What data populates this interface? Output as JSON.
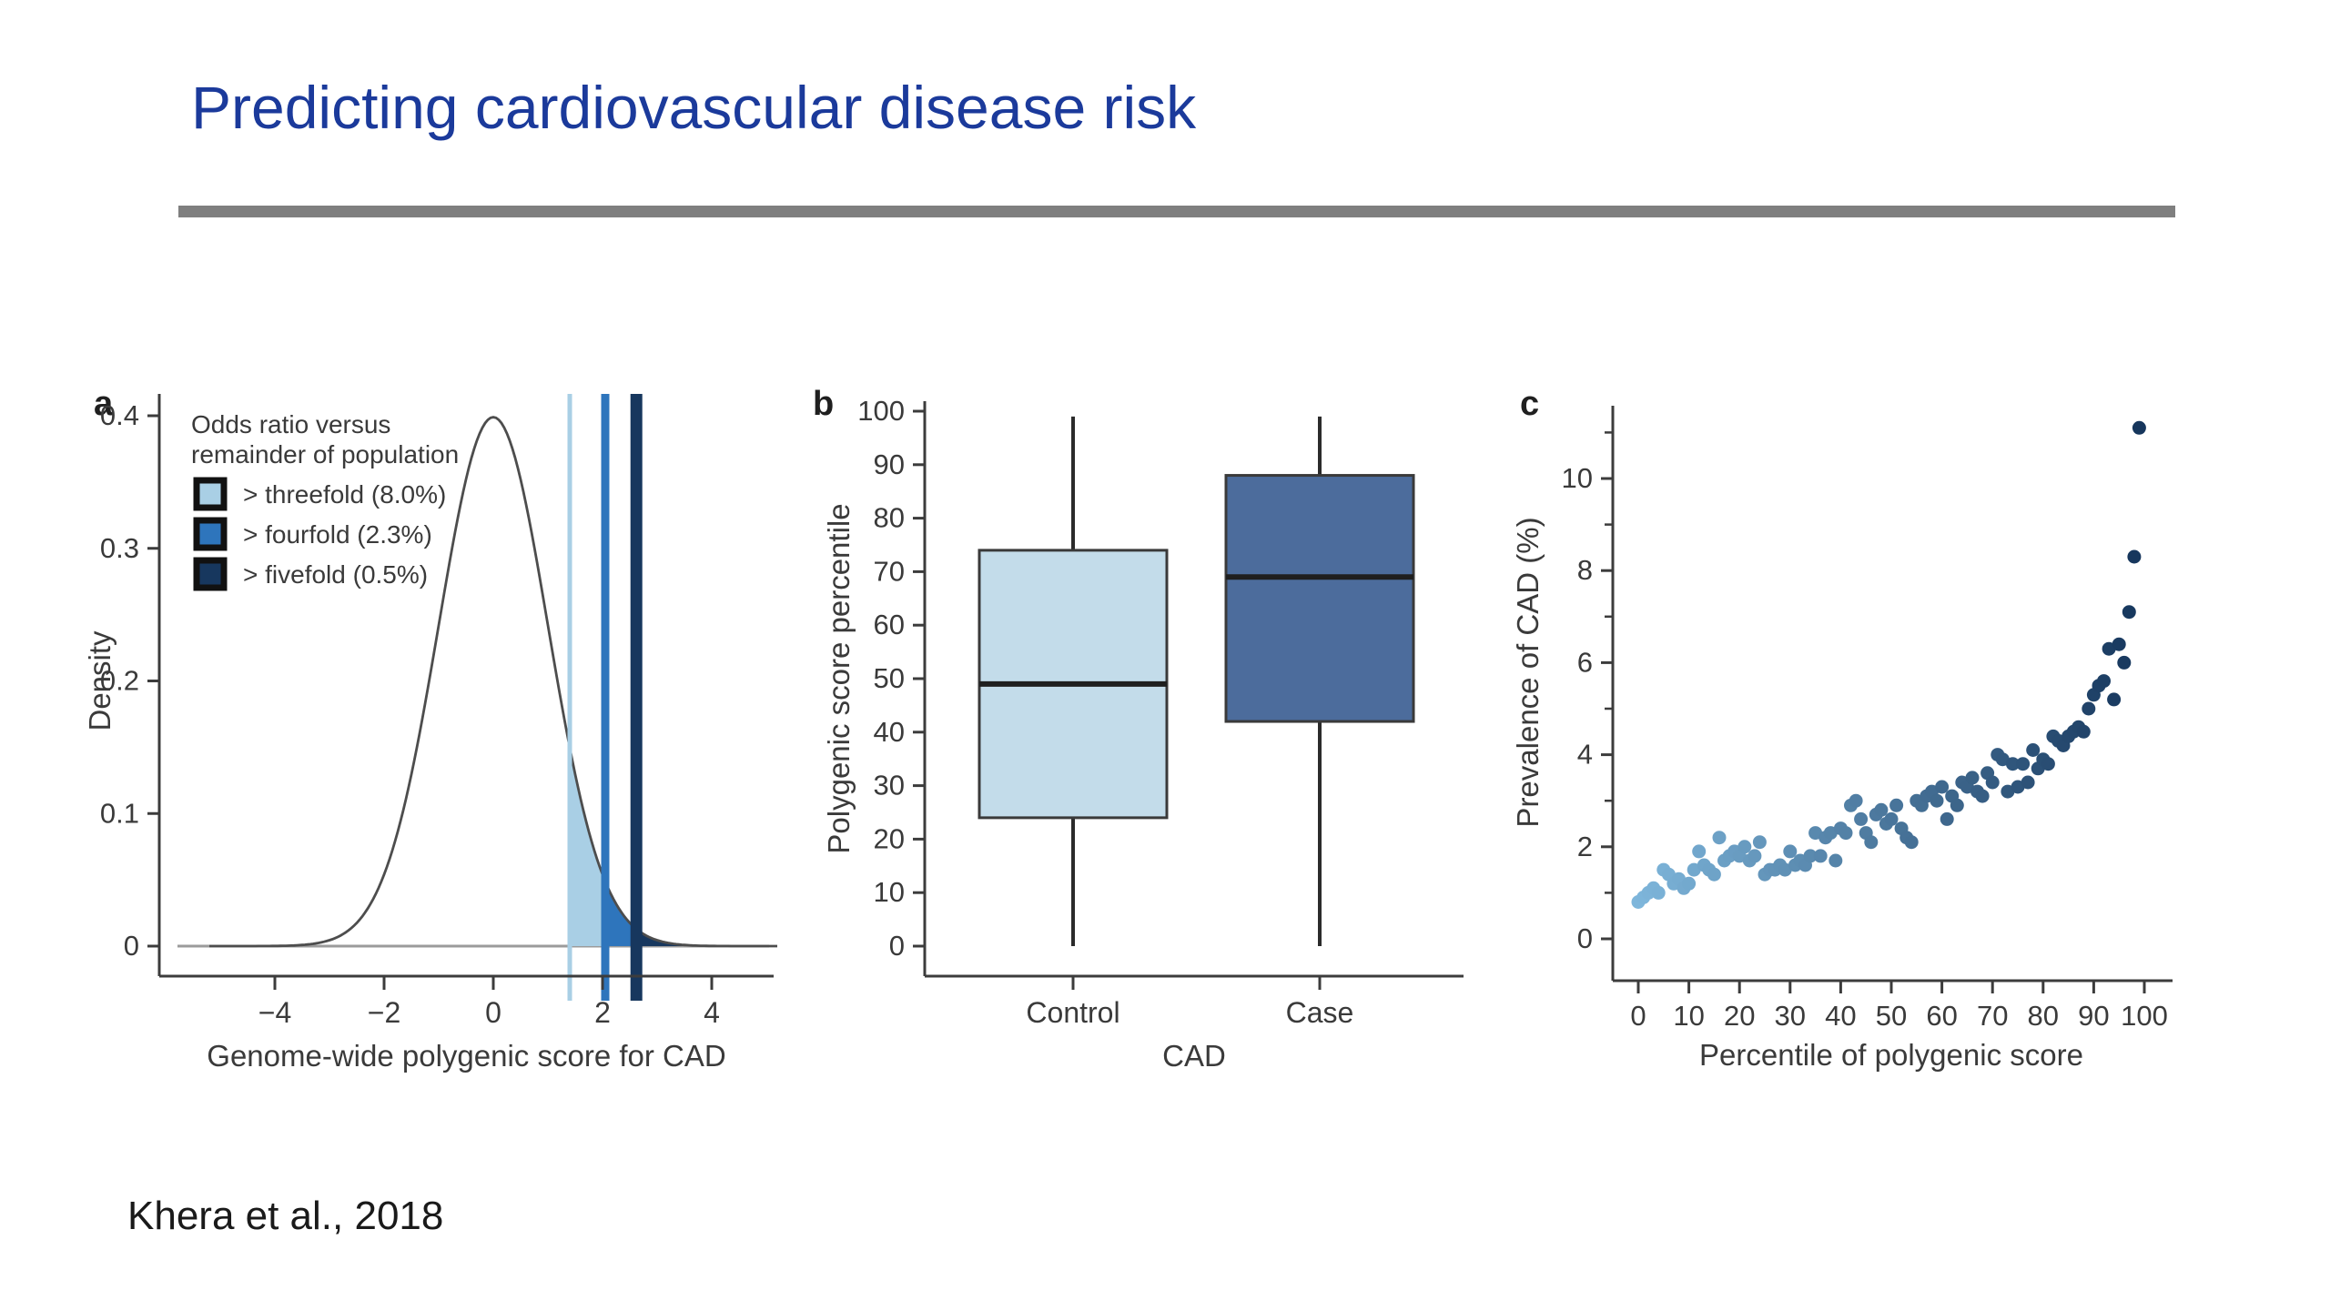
{
  "slide": {
    "title": "Predicting cardiovascular disease risk",
    "title_color": "#1b3a9b",
    "divider_color": "#7f7f7f",
    "background": "#ffffff",
    "citation": "Khera et al., 2018"
  },
  "chart_data": [
    {
      "panel_label": "a",
      "type": "area",
      "xlabel": "Genome-wide polygenic score for CAD",
      "ylabel": "Density",
      "xlim": [
        -5.5,
        5.3
      ],
      "ylim": [
        0,
        0.42
      ],
      "xticks": [
        -4,
        -2,
        0,
        2,
        4
      ],
      "yticks": [
        0,
        0.1,
        0.2,
        0.3,
        0.4
      ],
      "distribution": {
        "shape": "normal",
        "mean": 0,
        "sd": 1,
        "peak_density": 0.4
      },
      "curve_color": "#4d4d4d",
      "baseline_color": "#9b9b9b",
      "legend_title_lines": [
        "Odds ratio versus",
        "remainder of population"
      ],
      "legend_items": [
        {
          "label": "> threefold (8.0%)",
          "color": "#a9cfe5",
          "threshold": 1.4
        },
        {
          "label": "> fourfold (2.3%)",
          "color": "#2e75bc",
          "threshold": 2.05
        },
        {
          "label": "> fivefold (0.5%)",
          "color": "#17375e",
          "threshold": 2.62
        }
      ]
    },
    {
      "panel_label": "b",
      "type": "box",
      "xlabel": "CAD",
      "ylabel": "Polygenic score percentile",
      "ylim": [
        0,
        103
      ],
      "yticks": [
        0,
        10,
        20,
        30,
        40,
        50,
        60,
        70,
        80,
        90,
        100
      ],
      "categories": [
        "Control",
        "Case"
      ],
      "boxes": [
        {
          "category": "Control",
          "whisker_low": 0,
          "q1": 24,
          "median": 49,
          "q3": 74,
          "whisker_high": 99,
          "fill": "#c3dcea"
        },
        {
          "category": "Case",
          "whisker_low": 0,
          "q1": 42,
          "median": 69,
          "q3": 88,
          "whisker_high": 99,
          "fill": "#4c6c9c"
        }
      ],
      "box_border_color": "#3a3a3a",
      "median_color": "#1f1f1f",
      "whisker_color": "#2b2b2b"
    },
    {
      "panel_label": "c",
      "type": "scatter",
      "xlabel": "Percentile of polygenic score",
      "ylabel": "Prevalence of CAD (%)",
      "xlim": [
        -2,
        103
      ],
      "ylim": [
        0,
        11.8
      ],
      "xticks": [
        0,
        10,
        20,
        30,
        40,
        50,
        60,
        70,
        80,
        90,
        100
      ],
      "yticks": [
        0,
        2,
        4,
        6,
        8,
        10
      ],
      "yticks_minor": [
        1,
        3,
        5,
        7,
        9,
        11
      ],
      "point_color_low": "#7eb6db",
      "point_color_high": "#16365c",
      "points": [
        [
          0,
          0.8
        ],
        [
          1,
          0.9
        ],
        [
          2,
          1.0
        ],
        [
          3,
          1.1
        ],
        [
          4,
          1.0
        ],
        [
          5,
          1.5
        ],
        [
          6,
          1.4
        ],
        [
          7,
          1.2
        ],
        [
          8,
          1.3
        ],
        [
          9,
          1.1
        ],
        [
          10,
          1.2
        ],
        [
          11,
          1.5
        ],
        [
          12,
          1.9
        ],
        [
          13,
          1.6
        ],
        [
          14,
          1.5
        ],
        [
          15,
          1.4
        ],
        [
          16,
          2.2
        ],
        [
          17,
          1.7
        ],
        [
          18,
          1.8
        ],
        [
          19,
          1.9
        ],
        [
          20,
          1.8
        ],
        [
          21,
          2.0
        ],
        [
          22,
          1.7
        ],
        [
          23,
          1.8
        ],
        [
          24,
          2.1
        ],
        [
          25,
          1.4
        ],
        [
          26,
          1.5
        ],
        [
          27,
          1.5
        ],
        [
          28,
          1.6
        ],
        [
          29,
          1.5
        ],
        [
          30,
          1.9
        ],
        [
          31,
          1.6
        ],
        [
          32,
          1.7
        ],
        [
          33,
          1.6
        ],
        [
          34,
          1.8
        ],
        [
          35,
          2.3
        ],
        [
          36,
          1.8
        ],
        [
          37,
          2.2
        ],
        [
          38,
          2.3
        ],
        [
          39,
          1.7
        ],
        [
          40,
          2.4
        ],
        [
          41,
          2.3
        ],
        [
          42,
          2.9
        ],
        [
          43,
          3.0
        ],
        [
          44,
          2.6
        ],
        [
          45,
          2.3
        ],
        [
          46,
          2.1
        ],
        [
          47,
          2.7
        ],
        [
          48,
          2.8
        ],
        [
          49,
          2.5
        ],
        [
          50,
          2.6
        ],
        [
          51,
          2.9
        ],
        [
          52,
          2.4
        ],
        [
          53,
          2.2
        ],
        [
          54,
          2.1
        ],
        [
          55,
          3.0
        ],
        [
          56,
          2.9
        ],
        [
          57,
          3.1
        ],
        [
          58,
          3.2
        ],
        [
          59,
          3.0
        ],
        [
          60,
          3.3
        ],
        [
          61,
          2.6
        ],
        [
          62,
          3.1
        ],
        [
          63,
          2.9
        ],
        [
          64,
          3.4
        ],
        [
          65,
          3.3
        ],
        [
          66,
          3.5
        ],
        [
          67,
          3.2
        ],
        [
          68,
          3.1
        ],
        [
          69,
          3.6
        ],
        [
          70,
          3.4
        ],
        [
          71,
          4.0
        ],
        [
          72,
          3.9
        ],
        [
          73,
          3.2
        ],
        [
          74,
          3.8
        ],
        [
          75,
          3.3
        ],
        [
          76,
          3.8
        ],
        [
          77,
          3.4
        ],
        [
          78,
          4.1
        ],
        [
          79,
          3.7
        ],
        [
          80,
          3.9
        ],
        [
          81,
          3.8
        ],
        [
          82,
          4.4
        ],
        [
          83,
          4.3
        ],
        [
          84,
          4.2
        ],
        [
          85,
          4.4
        ],
        [
          86,
          4.5
        ],
        [
          87,
          4.6
        ],
        [
          88,
          4.5
        ],
        [
          89,
          5.0
        ],
        [
          90,
          5.3
        ],
        [
          91,
          5.5
        ],
        [
          92,
          5.6
        ],
        [
          93,
          6.3
        ],
        [
          94,
          5.2
        ],
        [
          95,
          6.4
        ],
        [
          96,
          6.0
        ],
        [
          97,
          7.1
        ],
        [
          98,
          8.3
        ],
        [
          99,
          11.1
        ]
      ]
    }
  ]
}
